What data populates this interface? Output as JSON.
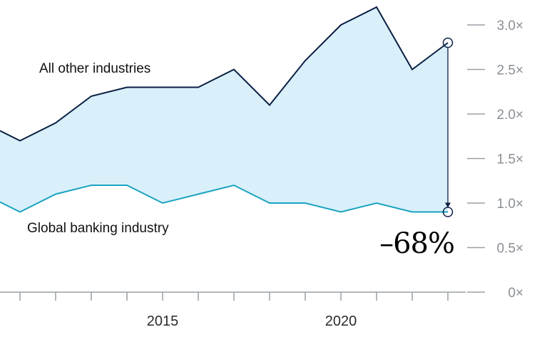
{
  "chart_data": {
    "type": "area",
    "x": [
      2010,
      2011,
      2012,
      2013,
      2014,
      2015,
      2016,
      2017,
      2018,
      2019,
      2020,
      2021,
      2022,
      2023
    ],
    "series": [
      {
        "name": "All other industries",
        "values": [
          1.9,
          1.7,
          1.9,
          2.2,
          2.3,
          2.3,
          2.3,
          2.5,
          2.1,
          2.6,
          3.0,
          3.2,
          2.5,
          2.8
        ],
        "color": "#0b1f44"
      },
      {
        "name": "Global banking industry",
        "values": [
          1.1,
          0.9,
          1.1,
          1.2,
          1.2,
          1.0,
          1.1,
          1.2,
          1.0,
          1.0,
          0.9,
          1.0,
          0.9,
          0.9
        ],
        "color": "#1aa3c0"
      }
    ],
    "fill_color": "#d9f0fb",
    "y_ticks": [
      "0×",
      "0.5×",
      "1.0×",
      "1.5×",
      "2.0×",
      "2.5×",
      "3.0×"
    ],
    "y_tick_values": [
      0,
      0.5,
      1.0,
      1.5,
      2.0,
      2.5,
      3.0
    ],
    "x_tick_labels": [
      "2015",
      "2020"
    ],
    "x_tick_label_values": [
      2015,
      2020
    ],
    "ylim": [
      0,
      3.2
    ],
    "annotation": {
      "text": "–68%",
      "year": 2023,
      "from_value": 2.8,
      "to_value": 0.9
    },
    "grid": false,
    "legend": "inline-labels"
  }
}
